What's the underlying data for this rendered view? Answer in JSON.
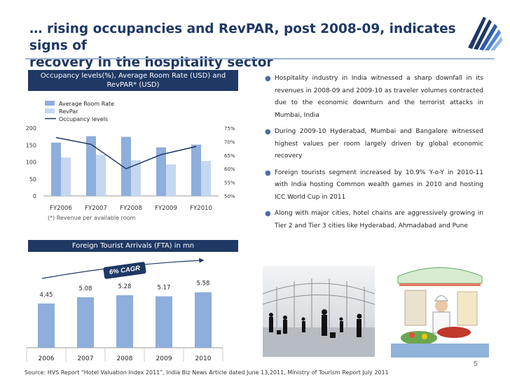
{
  "slide": {
    "title_line1": "… rising occupancies and RevPAR, post 2008-09, indicates signs of",
    "title_line2": "recovery in the hospitality sector",
    "page_number": "5",
    "source": "Source:  HVS   Report “Hotel Valuation Index 2011”,  India Biz News Article dated  June 13,2011, Ministry of Tourism  Report  July 2011"
  },
  "bullets": [
    "Hospitality  industry  in  India  witnessed  a  sharp  downfall  in  its  revenues in 2008-09 and 2009-10 as traveler volumes contracted due to the  economic downturn and the terrorist attacks in Mumbai, India",
    "During  2009-10  Hyderabad,  Mumbai  and  Bangalore  witnessed highest values per room largely driven by global economic recovery",
    "Foreign  tourists  segment  increased  by  10.9%  Y-o-Y  in  2010-11  with  India  hosting  Common wealth games in 2010 and hosting ICC World Cup  in 2011",
    "Along with  major cities, hotel chains are  aggressively growing in Tier 2 and  Tier 3 cities like Hyderabad, Ahmadabad and Pune"
  ],
  "colors": {
    "navy": "#1f3864",
    "bar_dark": "#8eaedb",
    "bar_light": "#c6d7f0",
    "line": "#1f3864"
  },
  "chart_data": [
    {
      "type": "bar",
      "title_line1": "Occupancy levels(%), Average  Room Rate (USD)  and",
      "title_line2": "RevPAR*  (USD)",
      "categories": [
        "FY2006",
        "FY2007",
        "FY2008",
        "FY2009",
        "FY2010"
      ],
      "series": [
        {
          "name": "Average Room  Rate",
          "values": [
            157,
            176,
            174,
            143,
            151
          ]
        },
        {
          "name": "RevPar",
          "values": [
            113,
            121,
            105,
            93,
            103
          ]
        },
        {
          "name": "Occupancy  levels",
          "axis": "right",
          "line": true,
          "values": [
            71.5,
            69,
            60,
            65.2,
            68.2
          ]
        }
      ],
      "ylim": [
        0,
        200
      ],
      "yticks": [
        "0",
        "50",
        "100",
        "150",
        "200"
      ],
      "y2lim": [
        50,
        75
      ],
      "y2ticks": [
        "50%",
        "55%",
        "60%",
        "65%",
        "70%",
        "75%"
      ],
      "note": "(*) Revenue per available room",
      "legend": "top-left"
    },
    {
      "type": "bar",
      "title": "Foreign  Tourist Arrivals (FTA) in mn",
      "categories": [
        "2006",
        "2007",
        "2008",
        "2009",
        "2010"
      ],
      "values": [
        4.45,
        5.08,
        5.28,
        5.17,
        5.58
      ],
      "data_labels": [
        "4.45",
        "5.08",
        "5.28",
        "5.17",
        "5.58"
      ],
      "annotation": "6% CAGR",
      "ylim": [
        0,
        9.5
      ]
    }
  ]
}
